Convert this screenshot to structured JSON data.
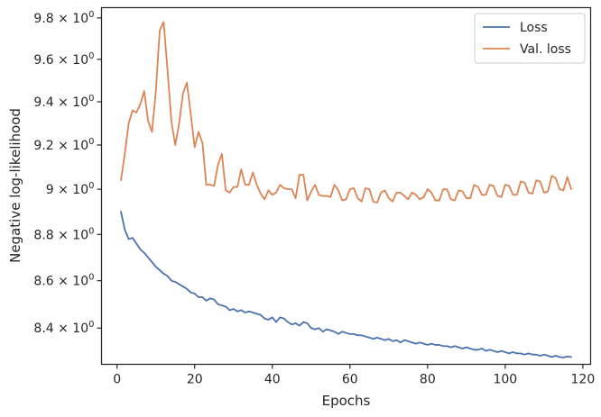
{
  "chart_data": {
    "type": "line",
    "xlabel": "Epochs",
    "ylabel": "Negative log-likelihood",
    "xlim": [
      -4,
      122
    ],
    "ylim": [
      8.25,
      9.85
    ],
    "yscale": "log",
    "grid": false,
    "legend_placement": "top-right",
    "x_ticks": [
      {
        "value": 0,
        "label": "0"
      },
      {
        "value": 20,
        "label": "20"
      },
      {
        "value": 40,
        "label": "40"
      },
      {
        "value": 60,
        "label": "60"
      },
      {
        "value": 80,
        "label": "80"
      },
      {
        "value": 100,
        "label": "100"
      },
      {
        "value": 120,
        "label": "120"
      }
    ],
    "y_ticks": [
      {
        "value": 8.4,
        "base": "8.4",
        "mult": "×",
        "exp_base": "10",
        "exp": "0"
      },
      {
        "value": 8.6,
        "base": "8.6",
        "mult": "×",
        "exp_base": "10",
        "exp": "0"
      },
      {
        "value": 8.8,
        "base": "8.8",
        "mult": "×",
        "exp_base": "10",
        "exp": "0"
      },
      {
        "value": 9.0,
        "base": "9",
        "mult": "×",
        "exp_base": "10",
        "exp": "0"
      },
      {
        "value": 9.2,
        "base": "9.2",
        "mult": "×",
        "exp_base": "10",
        "exp": "0"
      },
      {
        "value": 9.4,
        "base": "9.4",
        "mult": "×",
        "exp_base": "10",
        "exp": "0"
      },
      {
        "value": 9.6,
        "base": "9.6",
        "mult": "×",
        "exp_base": "10",
        "exp": "0"
      },
      {
        "value": 9.8,
        "base": "9.8",
        "mult": "×",
        "exp_base": "10",
        "exp": "0"
      }
    ],
    "series": [
      {
        "name": "Loss",
        "color": "#4c72b0",
        "x": [
          1,
          2,
          3,
          4,
          5,
          6,
          7,
          8,
          9,
          10,
          11,
          12,
          13,
          14,
          15,
          16,
          17,
          18,
          19,
          20,
          21,
          22,
          23,
          24,
          25,
          26,
          27,
          28,
          29,
          30,
          31,
          32,
          33,
          34,
          35,
          36,
          37,
          38,
          39,
          40,
          41,
          42,
          43,
          44,
          45,
          46,
          47,
          48,
          49,
          50,
          51,
          52,
          53,
          54,
          55,
          56,
          57,
          58,
          59,
          60,
          61,
          62,
          63,
          64,
          65,
          66,
          67,
          68,
          69,
          70,
          71,
          72,
          73,
          74,
          75,
          76,
          77,
          78,
          79,
          80,
          81,
          82,
          83,
          84,
          85,
          86,
          87,
          88,
          89,
          90,
          91,
          92,
          93,
          94,
          95,
          96,
          97,
          98,
          99,
          100,
          101,
          102,
          103,
          104,
          105,
          106,
          107,
          108,
          109,
          110,
          111,
          112,
          113,
          114,
          115,
          116,
          117
        ],
        "values": [
          8.9,
          8.82,
          8.78,
          8.785,
          8.76,
          8.735,
          8.72,
          8.7,
          8.68,
          8.66,
          8.645,
          8.63,
          8.62,
          8.6,
          8.595,
          8.585,
          8.575,
          8.565,
          8.55,
          8.545,
          8.53,
          8.53,
          8.515,
          8.525,
          8.52,
          8.5,
          8.495,
          8.49,
          8.475,
          8.48,
          8.47,
          8.475,
          8.465,
          8.47,
          8.465,
          8.46,
          8.455,
          8.44,
          8.435,
          8.445,
          8.425,
          8.445,
          8.44,
          8.425,
          8.415,
          8.42,
          8.41,
          8.425,
          8.42,
          8.4,
          8.395,
          8.4,
          8.385,
          8.395,
          8.39,
          8.385,
          8.375,
          8.385,
          8.38,
          8.375,
          8.375,
          8.37,
          8.37,
          8.365,
          8.36,
          8.355,
          8.36,
          8.355,
          8.35,
          8.355,
          8.345,
          8.35,
          8.34,
          8.35,
          8.345,
          8.34,
          8.335,
          8.34,
          8.335,
          8.33,
          8.335,
          8.33,
          8.33,
          8.325,
          8.325,
          8.32,
          8.325,
          8.32,
          8.315,
          8.32,
          8.315,
          8.31,
          8.31,
          8.315,
          8.305,
          8.31,
          8.305,
          8.3,
          8.305,
          8.3,
          8.295,
          8.3,
          8.295,
          8.295,
          8.29,
          8.295,
          8.29,
          8.29,
          8.285,
          8.29,
          8.285,
          8.28,
          8.285,
          8.28,
          8.278,
          8.282,
          8.28
        ]
      },
      {
        "name": "Val. loss",
        "color": "#dd8452",
        "x": [
          1,
          2,
          3,
          4,
          5,
          6,
          7,
          8,
          9,
          10,
          11,
          12,
          13,
          14,
          15,
          16,
          17,
          18,
          19,
          20,
          21,
          22,
          23,
          24,
          25,
          26,
          27,
          28,
          29,
          30,
          31,
          32,
          33,
          34,
          35,
          36,
          37,
          38,
          39,
          40,
          41,
          42,
          43,
          44,
          45,
          46,
          47,
          48,
          49,
          50,
          51,
          52,
          53,
          54,
          55,
          56,
          57,
          58,
          59,
          60,
          61,
          62,
          63,
          64,
          65,
          66,
          67,
          68,
          69,
          70,
          71,
          72,
          73,
          74,
          75,
          76,
          77,
          78,
          79,
          80,
          81,
          82,
          83,
          84,
          85,
          86,
          87,
          88,
          89,
          90,
          91,
          92,
          93,
          94,
          95,
          96,
          97,
          98,
          99,
          100,
          101,
          102,
          103,
          104,
          105,
          106,
          107,
          108,
          109,
          110,
          111,
          112,
          113,
          114,
          115,
          116,
          117
        ],
        "values": [
          9.04,
          9.16,
          9.3,
          9.36,
          9.35,
          9.39,
          9.45,
          9.31,
          9.26,
          9.45,
          9.74,
          9.78,
          9.55,
          9.31,
          9.2,
          9.3,
          9.44,
          9.49,
          9.34,
          9.19,
          9.26,
          9.21,
          9.02,
          9.02,
          9.015,
          9.11,
          9.16,
          8.995,
          8.985,
          9.01,
          9.01,
          9.09,
          9.02,
          9.02,
          9.075,
          9.02,
          8.98,
          8.955,
          8.995,
          8.975,
          8.985,
          9.02,
          9.005,
          9.0,
          9.0,
          8.96,
          9.065,
          9.065,
          8.95,
          8.99,
          9.02,
          8.975,
          8.97,
          8.97,
          8.965,
          9.02,
          8.995,
          8.95,
          8.955,
          9.0,
          9.005,
          8.96,
          8.945,
          9.005,
          9.0,
          8.945,
          8.94,
          8.985,
          8.995,
          8.96,
          8.945,
          8.985,
          8.985,
          8.97,
          8.955,
          8.985,
          8.975,
          8.955,
          8.965,
          9.0,
          8.985,
          8.95,
          8.95,
          9.0,
          9.0,
          8.955,
          8.95,
          8.995,
          8.99,
          8.96,
          8.96,
          9.02,
          9.01,
          8.975,
          8.975,
          9.02,
          9.015,
          8.97,
          8.965,
          9.02,
          9.015,
          8.975,
          8.975,
          9.035,
          9.03,
          8.985,
          8.98,
          9.04,
          9.035,
          8.985,
          8.99,
          9.06,
          9.05,
          9.0,
          8.995,
          9.055,
          9.0
        ]
      }
    ]
  }
}
